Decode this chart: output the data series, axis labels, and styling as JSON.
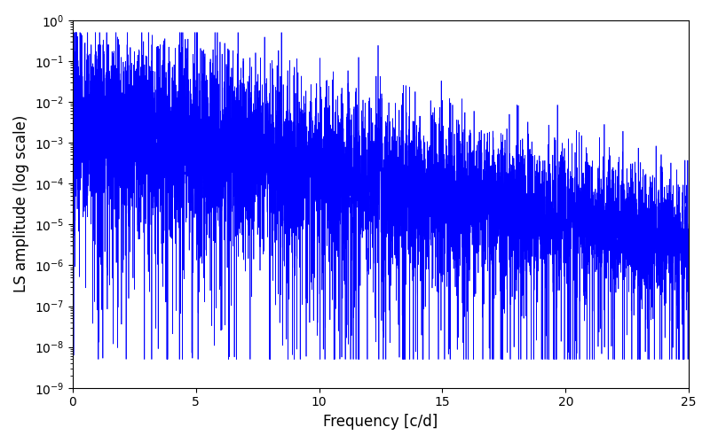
{
  "xlabel": "Frequency [c/d]",
  "ylabel": "LS amplitude (log scale)",
  "line_color": "blue",
  "xlim": [
    0,
    25
  ],
  "ylim": [
    1e-09,
    1.0
  ],
  "freq_max": 25.0,
  "n_points": 8000,
  "background_color": "#ffffff",
  "figsize": [
    8.0,
    5.0
  ],
  "dpi": 100,
  "seed": 7
}
